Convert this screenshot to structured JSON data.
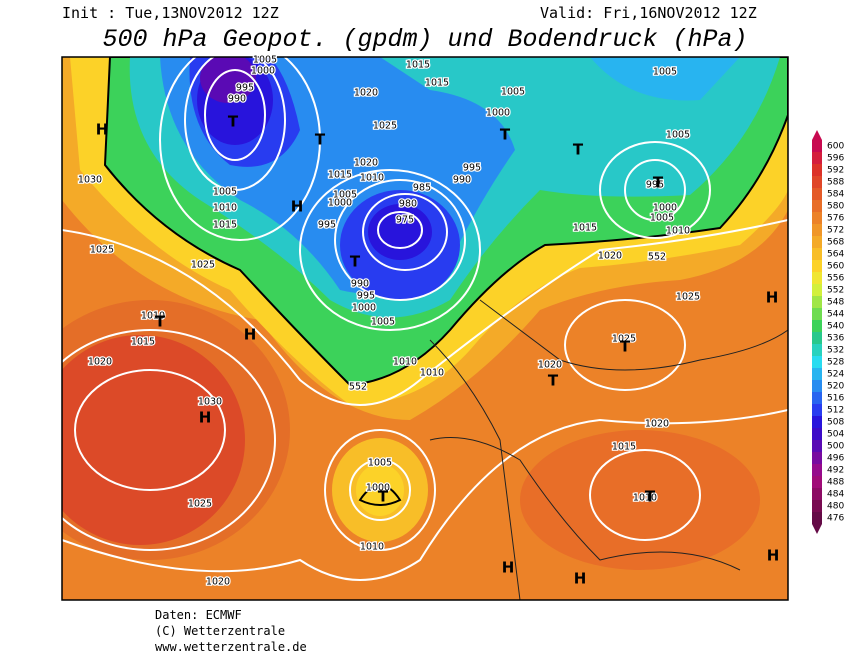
{
  "header": {
    "init": "Init : Tue,13NOV2012 12Z",
    "valid": "Valid: Fri,16NOV2012 12Z",
    "title": "500 hPa Geopot. (gpdm) und Bodendruck (hPa)"
  },
  "colorbar": {
    "labels": [
      600,
      596,
      592,
      588,
      584,
      580,
      576,
      572,
      568,
      564,
      560,
      556,
      552,
      548,
      544,
      540,
      536,
      532,
      528,
      524,
      520,
      516,
      512,
      508,
      504,
      500,
      496,
      492,
      488,
      484,
      480,
      476
    ],
    "colors": [
      "#c80a50",
      "#d41e3c",
      "#dc3228",
      "#e04628",
      "#e45a28",
      "#e86e28",
      "#ec8228",
      "#f09628",
      "#f4aa28",
      "#f8be28",
      "#fcd228",
      "#f0e632",
      "#d2f03c",
      "#a0e646",
      "#6edc50",
      "#3cd25a",
      "#28c88c",
      "#28d2be",
      "#28dcf0",
      "#28b4f0",
      "#288cf0",
      "#2864f0",
      "#283cf0",
      "#2814dc",
      "#3c0ac8",
      "#5a0ab4",
      "#780aa0",
      "#960a8c",
      "#a00a78",
      "#8c0a64",
      "#780a50",
      "#640a46"
    ]
  },
  "map": {
    "high_marker": "H",
    "low_marker": "T",
    "pressure_labels": [
      1005,
      1000,
      995,
      990,
      1015,
      1015,
      1020,
      1005,
      1000,
      1025,
      1005,
      1005,
      995,
      1000,
      1005,
      1010,
      1020,
      1015,
      1010,
      1005,
      1000,
      995,
      995,
      990,
      985,
      980,
      975,
      1005,
      1010,
      1015,
      1030,
      1025,
      1025,
      990,
      995,
      1000,
      1005,
      1010,
      1015,
      1020,
      1030,
      1025,
      1020,
      1010,
      1010,
      1005,
      1000,
      1010,
      1015,
      1020,
      1025,
      1025,
      1020,
      1020,
      1015,
      1010,
      552,
      552
    ]
  },
  "footer": {
    "source": "Daten: ECMWF",
    "copyright": "(C) Wetterzentrale",
    "url": "www.wetterzentrale.de"
  }
}
